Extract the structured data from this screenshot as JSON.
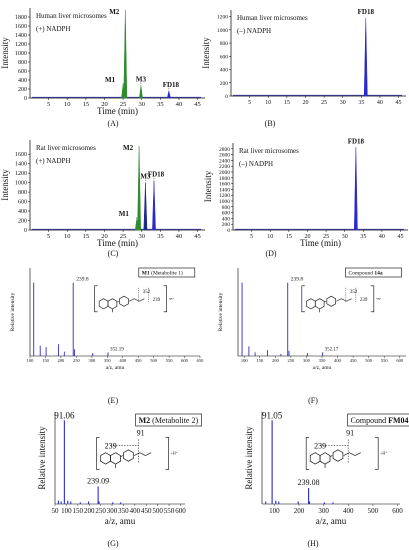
{
  "colors": {
    "green": "#2e8b2e",
    "blue": "#2b2bc8",
    "navy": "#1a2a8c",
    "axis": "#000000",
    "label": "#111111"
  },
  "chart_data": [
    {
      "id": "A",
      "type": "line",
      "panel_label": "(A)",
      "title": "Human liver microsomes",
      "subtitle": "(+) NADPH",
      "xlabel": "Time (min)",
      "ylabel": "Intensity",
      "xlim": [
        0,
        47
      ],
      "ylim": [
        0,
        2000
      ],
      "xticks": [
        5,
        10,
        15,
        20,
        25,
        30,
        35,
        40,
        45
      ],
      "yticks": [
        0,
        200,
        400,
        600,
        800,
        1000,
        1200,
        1400,
        1600,
        1800
      ],
      "peaks": [
        {
          "name": "M1",
          "x": 25.0,
          "height": 310,
          "color": "#2e8b2e"
        },
        {
          "name": "M2",
          "x": 25.6,
          "height": 1960,
          "color": "#2e8b2e"
        },
        {
          "name": "M3",
          "x": 29.8,
          "height": 280,
          "color": "#2e8b2e"
        },
        {
          "name": "FD18",
          "x": 37.3,
          "height": 160,
          "color": "#2b2bc8"
        }
      ]
    },
    {
      "id": "B",
      "type": "line",
      "panel_label": "(B)",
      "title": "Human liver microsomes",
      "subtitle": "(–) NADPH",
      "xlabel": "",
      "ylabel": "Intensity",
      "xlim": [
        0,
        47
      ],
      "ylim": [
        0,
        1300
      ],
      "xticks": [
        5,
        10,
        15,
        20,
        25,
        30,
        35,
        40,
        45
      ],
      "yticks": [
        0,
        200,
        400,
        600,
        800,
        1000,
        1200
      ],
      "peaks": [
        {
          "name": "FD18",
          "x": 36.2,
          "height": 1180,
          "color": "#2b2bc8"
        }
      ]
    },
    {
      "id": "C",
      "type": "line",
      "panel_label": "(C)",
      "title": "Rat liver microsomes",
      "subtitle": "(+) NADPH",
      "xlabel": "Time (min)",
      "ylabel": "Intensity",
      "xlim": [
        0,
        47
      ],
      "ylim": [
        0,
        1900
      ],
      "xticks": [
        5,
        10,
        15,
        20,
        25,
        30,
        35,
        40,
        45
      ],
      "yticks": [
        0,
        200,
        400,
        600,
        800,
        1000,
        1200,
        1400,
        1600
      ],
      "peaks": [
        {
          "name": "M1",
          "x": 28.7,
          "height": 250,
          "color": "#2e8b2e"
        },
        {
          "name": "M2",
          "x": 29.3,
          "height": 1770,
          "color": "#2e8b2e"
        },
        {
          "name": "M3",
          "x": 31.0,
          "height": 1000,
          "color": "#1a2a8c"
        },
        {
          "name": "FD18",
          "x": 33.3,
          "height": 1040,
          "color": "#2b2bc8"
        }
      ]
    },
    {
      "id": "D",
      "type": "line",
      "panel_label": "(D)",
      "title": "Rat liver microsomes",
      "subtitle": "(–) NADPH",
      "xlabel": "Time (min)",
      "ylabel": "Intensity",
      "xlim": [
        0,
        47
      ],
      "ylim": [
        0,
        3000
      ],
      "xticks": [
        5,
        10,
        15,
        20,
        25,
        30,
        35,
        40,
        45
      ],
      "yticks": [
        0,
        200,
        400,
        600,
        800,
        1000,
        1200,
        1400,
        1600,
        1800,
        2000,
        2200,
        2400,
        2600,
        2800
      ],
      "peaks": [
        {
          "name": "FD18",
          "x": 33.0,
          "height": 2850,
          "color": "#2b2bc8"
        }
      ]
    },
    {
      "id": "E",
      "type": "bar",
      "panel_label": "(E)",
      "boxlabel": "M1",
      "boxlabel_suffix": "(Metabolite 1)",
      "xlabel": "a/z, amu",
      "ylabel": "Relative intensity",
      "xlim": [
        100,
        650
      ],
      "ylim": [
        0,
        120
      ],
      "xticks": [
        100,
        150,
        200,
        250,
        300,
        350,
        400,
        450,
        500,
        550,
        600,
        650
      ],
      "bars": [
        {
          "x": 112,
          "y": 100
        },
        {
          "x": 133,
          "y": 14
        },
        {
          "x": 152,
          "y": 12
        },
        {
          "x": 192,
          "y": 16
        },
        {
          "x": 211,
          "y": 6
        },
        {
          "x": 239.8,
          "y": 100
        },
        {
          "x": 244,
          "y": 9
        },
        {
          "x": 303,
          "y": 4
        },
        {
          "x": 352.19,
          "y": 5
        }
      ],
      "annotations": [
        {
          "text": "239.8"
        },
        {
          "text": "352.19"
        }
      ],
      "frag": {
        "a": "352",
        "b": "239"
      }
    },
    {
      "id": "F",
      "type": "bar",
      "panel_label": "(F)",
      "boxlabel": "Compound",
      "boxlabel_suffix": "14a",
      "xlabel": "a/z, amu",
      "ylabel": "Relative intensity",
      "xlim": [
        80,
        620
      ],
      "ylim": [
        0,
        120
      ],
      "xticks": [
        100,
        150,
        200,
        250,
        300,
        350,
        400,
        450,
        500,
        550,
        600
      ],
      "bars": [
        {
          "x": 93,
          "y": 100
        },
        {
          "x": 115,
          "y": 13
        },
        {
          "x": 135,
          "y": 5
        },
        {
          "x": 175,
          "y": 8
        },
        {
          "x": 218,
          "y": 3
        },
        {
          "x": 239.8,
          "y": 100
        },
        {
          "x": 244,
          "y": 7
        },
        {
          "x": 303,
          "y": 4
        },
        {
          "x": 352.17,
          "y": 5
        }
      ],
      "annotations": [
        {
          "text": "239.8"
        },
        {
          "text": "352.17"
        }
      ],
      "frag": {
        "a": "352",
        "b": "239"
      }
    },
    {
      "id": "G",
      "type": "bar",
      "panel_label": "(G)",
      "boxlabel": "M2",
      "boxlabel_suffix": "(Metabolite 2)",
      "xlabel": "a/z, amu",
      "ylabel": "Relative intensity",
      "xlim": [
        50,
        620
      ],
      "ylim": [
        0,
        110
      ],
      "xticks": [
        50,
        100,
        150,
        200,
        250,
        300,
        350,
        400,
        450,
        500,
        550,
        600
      ],
      "bars": [
        {
          "x": 65,
          "y": 4
        },
        {
          "x": 77,
          "y": 3
        },
        {
          "x": 91.06,
          "y": 100
        },
        {
          "x": 106,
          "y": 4
        },
        {
          "x": 119,
          "y": 3
        },
        {
          "x": 161,
          "y": 2
        },
        {
          "x": 197,
          "y": 3
        },
        {
          "x": 239.09,
          "y": 21
        },
        {
          "x": 243,
          "y": 3
        },
        {
          "x": 303,
          "y": 2
        },
        {
          "x": 338,
          "y": 2
        }
      ],
      "annotations": [
        {
          "text": "91.06"
        },
        {
          "text": "239.09"
        }
      ],
      "frag": {
        "a": "239",
        "b": "91"
      }
    },
    {
      "id": "H",
      "type": "bar",
      "panel_label": "(H)",
      "boxlabel": "Compound",
      "boxlabel_suffix": "FM04",
      "xlabel": "a/z, amu",
      "ylabel": "Relative intensity",
      "xlim": [
        50,
        610
      ],
      "ylim": [
        0,
        110
      ],
      "xticks": [
        100,
        200,
        300,
        400,
        500,
        600
      ],
      "bars": [
        {
          "x": 65,
          "y": 3
        },
        {
          "x": 91.05,
          "y": 100
        },
        {
          "x": 106,
          "y": 4
        },
        {
          "x": 118,
          "y": 3
        },
        {
          "x": 197,
          "y": 3
        },
        {
          "x": 239.08,
          "y": 19
        },
        {
          "x": 243,
          "y": 3
        },
        {
          "x": 303,
          "y": 2
        },
        {
          "x": 338,
          "y": 2
        }
      ],
      "annotations": [
        {
          "text": "91.05"
        },
        {
          "text": "239.08"
        }
      ],
      "frag": {
        "a": "239",
        "b": "91"
      }
    }
  ]
}
